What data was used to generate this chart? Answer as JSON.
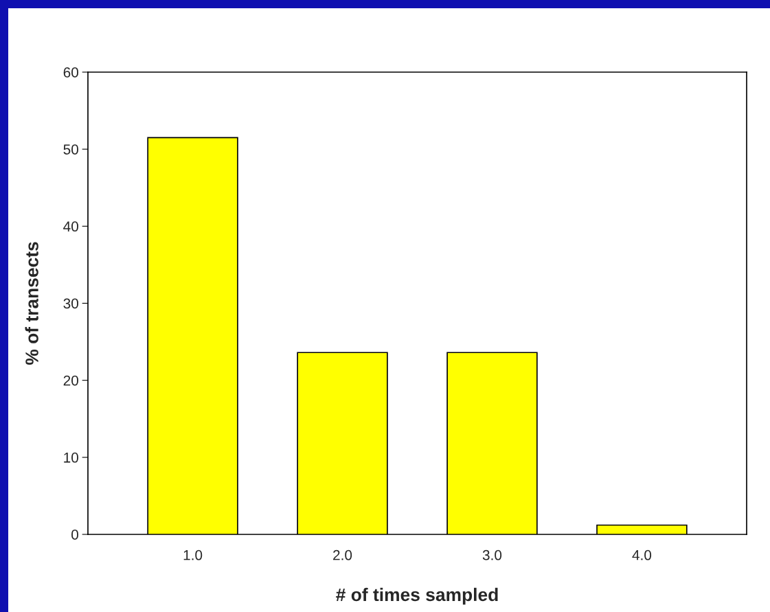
{
  "chart_data": {
    "type": "bar",
    "xlabel": "# of times sampled",
    "ylabel": "% of transects",
    "x": [
      1,
      2,
      3,
      4
    ],
    "values": [
      51.5,
      23.6,
      23.6,
      1.2
    ],
    "color": "#ffff00",
    "xlim": [
      0.3,
      4.7
    ],
    "xticks": [
      {
        "value": 1,
        "label": "1.0"
      },
      {
        "value": 2,
        "label": "2.0"
      },
      {
        "value": 3,
        "label": "3.0"
      },
      {
        "value": 4,
        "label": "4.0"
      }
    ],
    "ylim": [
      0,
      60
    ],
    "yticks": [
      0,
      10,
      20,
      30,
      40,
      50,
      60
    ],
    "grid": false,
    "legend": false
  }
}
